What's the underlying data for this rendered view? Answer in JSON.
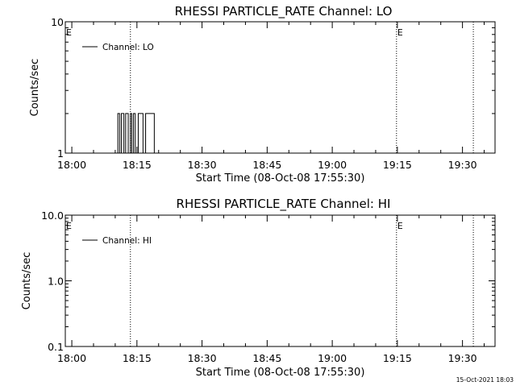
{
  "footer": {
    "timestamp": "15-Oct-2021 18:03"
  },
  "chart_data": [
    {
      "type": "line",
      "title": "RHESSI PARTICLE_RATE Channel: LO",
      "xlabel": "Start Time (08-Oct-08 17:55:30)",
      "ylabel": "Counts/sec",
      "y_scale": "log",
      "ylim": [
        1,
        10
      ],
      "y_ticks": [
        1,
        10
      ],
      "y_tick_labels": [
        "1",
        "10"
      ],
      "x_range_minutes": [
        -1.5,
        97.5
      ],
      "x_ticks": [
        0,
        15,
        30,
        45,
        60,
        75,
        90
      ],
      "x_tick_labels": [
        "18:00",
        "18:15",
        "18:30",
        "18:45",
        "19:00",
        "19:15",
        "19:30"
      ],
      "grid": false,
      "legend_position": "top-left",
      "event_marker_label": "E",
      "event_lines_minutes": [
        -4,
        13.5,
        74.8,
        92.5
      ],
      "event_labels_minutes": [
        -4,
        74.8
      ],
      "series": [
        {
          "name": "Channel: LO",
          "x": [
            0,
            10.3,
            10.6,
            11.0,
            11.4,
            12.0,
            12.4,
            13.0,
            13.5,
            13.8,
            14.2,
            14.6,
            15.3,
            15.8,
            16.4,
            17.0,
            17.6,
            18.2,
            19.0,
            20.0,
            21.5,
            22.5
          ],
          "values": [
            1,
            1,
            2,
            1,
            2,
            1,
            2,
            1,
            2,
            1,
            2,
            1,
            2,
            2,
            1,
            2,
            2,
            2,
            1,
            1,
            1,
            1
          ]
        }
      ]
    },
    {
      "type": "line",
      "title": "RHESSI PARTICLE_RATE Channel: HI",
      "xlabel": "Start Time (08-Oct-08 17:55:30)",
      "ylabel": "Counts/sec",
      "y_scale": "log",
      "ylim": [
        0.1,
        10
      ],
      "y_ticks": [
        0.1,
        1,
        10
      ],
      "y_tick_labels": [
        "0.1",
        "1.0",
        "10.0"
      ],
      "x_range_minutes": [
        -1.5,
        97.5
      ],
      "x_ticks": [
        0,
        15,
        30,
        45,
        60,
        75,
        90
      ],
      "x_tick_labels": [
        "18:00",
        "18:15",
        "18:30",
        "18:45",
        "19:00",
        "19:15",
        "19:30"
      ],
      "grid": false,
      "legend_position": "top-left",
      "event_marker_label": "E",
      "event_lines_minutes": [
        -4,
        13.5,
        74.8,
        92.5
      ],
      "event_labels_minutes": [
        -4,
        74.8
      ],
      "series": [
        {
          "name": "Channel: HI",
          "x": [],
          "values": []
        }
      ]
    }
  ]
}
